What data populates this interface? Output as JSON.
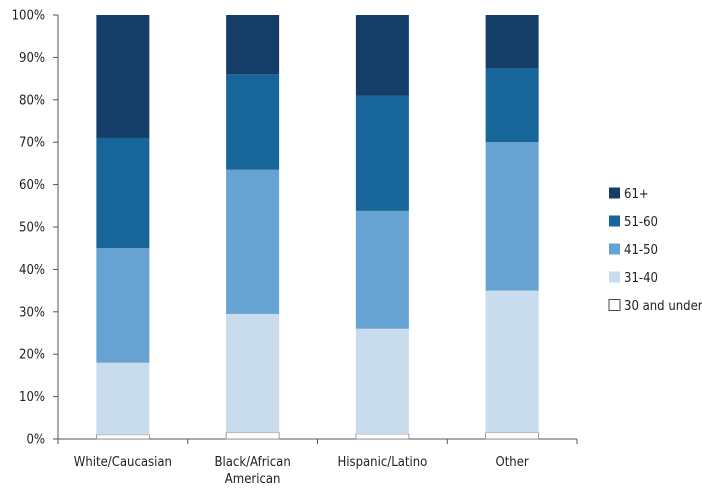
{
  "chart_data": {
    "type": "bar",
    "stacked": true,
    "percent": true,
    "categories": [
      "White/Caucasian",
      "Black/African American",
      "Hispanic/Latino",
      "Other"
    ],
    "category_lines": [
      [
        "White/Caucasian"
      ],
      [
        "Black/African",
        "American"
      ],
      [
        "Hispanic/Latino"
      ],
      [
        "Other"
      ]
    ],
    "series": [
      {
        "name": "30 and under",
        "color": "#ffffff",
        "values": [
          1,
          1.5,
          1.2,
          1.5
        ]
      },
      {
        "name": "31-40",
        "color": "#c9dcee",
        "values": [
          17,
          28,
          24.8,
          33.5
        ]
      },
      {
        "name": "41-50",
        "color": "#66a3d2",
        "values": [
          27,
          34,
          27.8,
          35
        ]
      },
      {
        "name": "51-60",
        "color": "#176599",
        "values": [
          26,
          22.5,
          27.2,
          17.5
        ]
      },
      {
        "name": "61+",
        "color": "#143e68",
        "values": [
          29,
          14,
          19,
          12.5
        ]
      }
    ],
    "ylim": [
      0,
      100
    ],
    "yticks": [
      "0%",
      "10%",
      "20%",
      "30%",
      "40%",
      "50%",
      "60%",
      "70%",
      "80%",
      "90%",
      "100%"
    ],
    "legend_order": [
      "61+",
      "51-60",
      "41-50",
      "31-40",
      "30 and under"
    ],
    "legend_position": "right",
    "grid": false
  }
}
